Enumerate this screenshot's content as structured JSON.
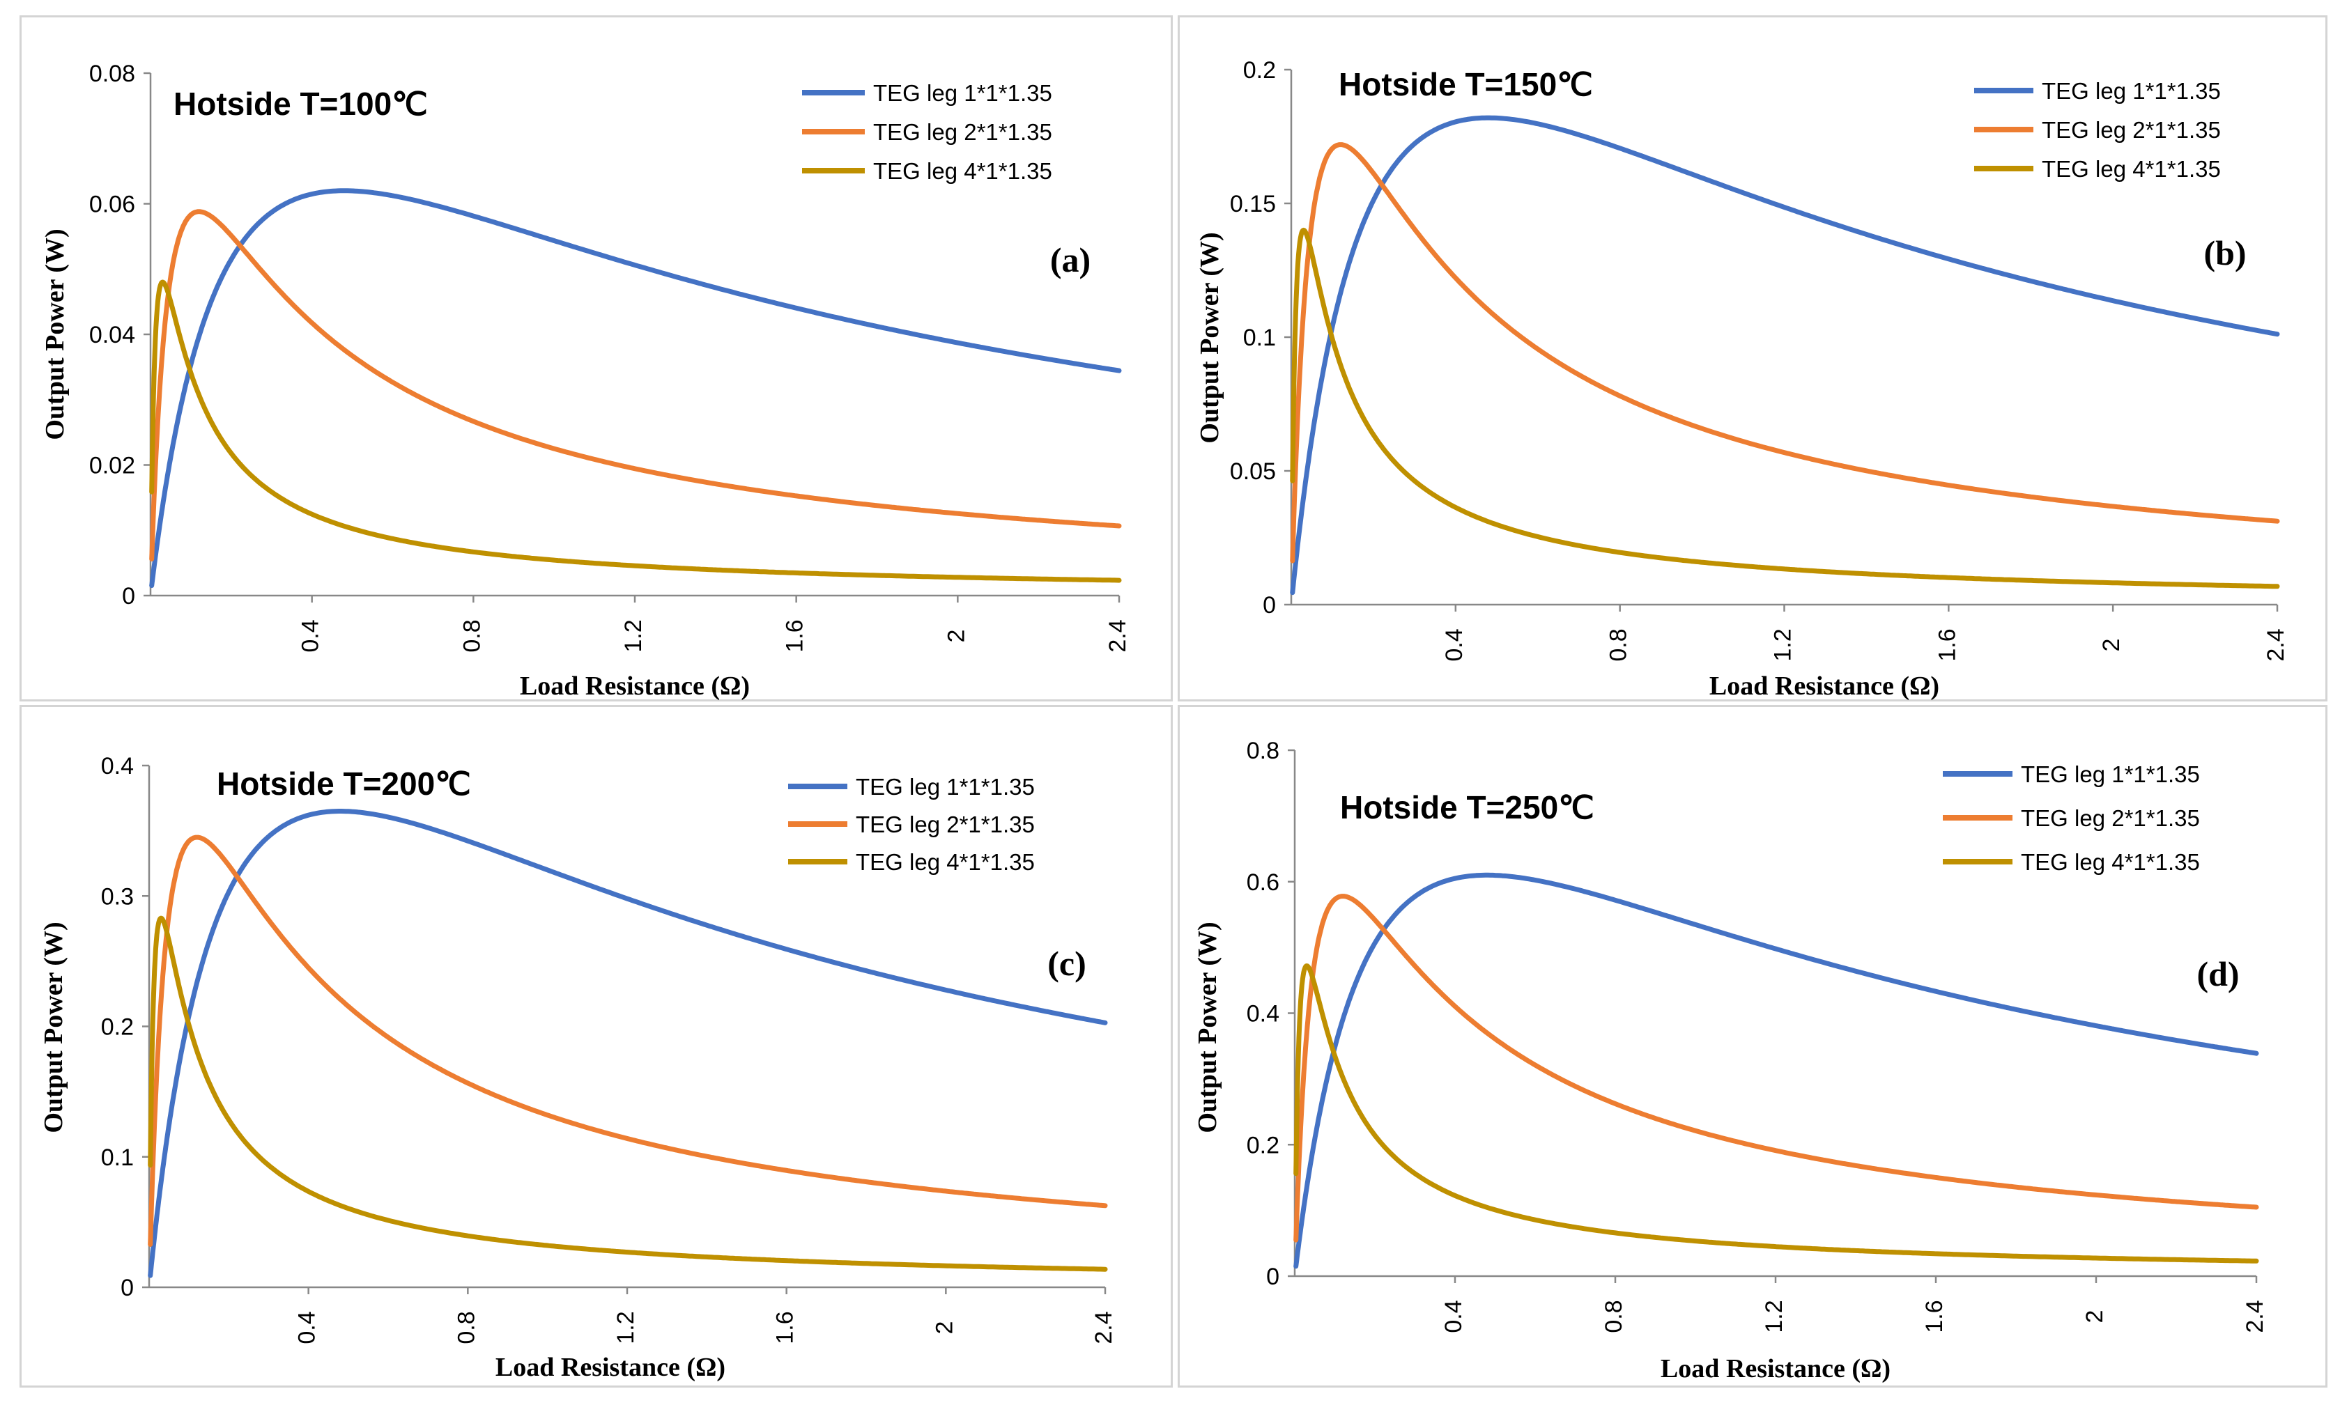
{
  "chart_data": [
    {
      "type": "line",
      "title": "Hotside T=100℃",
      "panel_label": "(a)",
      "xlabel": "Load Resistance (Ω)",
      "ylabel": "Output Power (W)",
      "xlim": [
        0,
        2.4
      ],
      "ylim": [
        0,
        0.08
      ],
      "xticks": [
        0.4,
        0.8,
        1.2,
        1.6,
        2,
        2.4
      ],
      "xtick_labels": [
        "0.4",
        "0.8",
        "1.2",
        "1.6",
        "2",
        "2.4"
      ],
      "yticks": [
        0,
        0.02,
        0.04,
        0.06,
        0.08
      ],
      "ytick_labels": [
        "0",
        "0.02",
        "0.04",
        "0.06",
        "0.08"
      ],
      "grid": false,
      "legend_position": "top-right",
      "series": [
        {
          "name": "TEG leg 1*1*1.35",
          "color": "#4472C4",
          "peak_power": 0.062,
          "optimal_resistance": 0.48
        },
        {
          "name": "TEG leg 2*1*1.35",
          "color": "#ED7D31",
          "peak_power": 0.0588,
          "optimal_resistance": 0.12
        },
        {
          "name": "TEG leg 4*1*1.35",
          "color": "#BF9000",
          "peak_power": 0.048,
          "optimal_resistance": 0.03
        }
      ]
    },
    {
      "type": "line",
      "title": "Hotside T=150℃",
      "panel_label": "(b)",
      "xlabel": "Load Resistance (Ω)",
      "ylabel": "Output Power (W)",
      "xlim": [
        0,
        2.4
      ],
      "ylim": [
        0,
        0.2
      ],
      "xticks": [
        0.4,
        0.8,
        1.2,
        1.6,
        2,
        2.4
      ],
      "xtick_labels": [
        "0.4",
        "0.8",
        "1.2",
        "1.6",
        "2",
        "2.4"
      ],
      "yticks": [
        0,
        0.05,
        0.1,
        0.15,
        0.2
      ],
      "ytick_labels": [
        "0",
        "0.05",
        "0.1",
        "0.15",
        "0.2"
      ],
      "grid": false,
      "legend_position": "top-right",
      "series": [
        {
          "name": "TEG leg 1*1*1.35",
          "color": "#4472C4",
          "peak_power": 0.182,
          "optimal_resistance": 0.48
        },
        {
          "name": "TEG leg 2*1*1.35",
          "color": "#ED7D31",
          "peak_power": 0.172,
          "optimal_resistance": 0.12
        },
        {
          "name": "TEG leg 4*1*1.35",
          "color": "#BF9000",
          "peak_power": 0.14,
          "optimal_resistance": 0.03
        }
      ]
    },
    {
      "type": "line",
      "title": "Hotside T=200℃",
      "panel_label": "(c)",
      "xlabel": "Load Resistance (Ω)",
      "ylabel": "Output Power (W)",
      "xlim": [
        0,
        2.4
      ],
      "ylim": [
        0,
        0.4
      ],
      "xticks": [
        0.4,
        0.8,
        1.2,
        1.6,
        2,
        2.4
      ],
      "xtick_labels": [
        "0.4",
        "0.8",
        "1.2",
        "1.6",
        "2",
        "2.4"
      ],
      "yticks": [
        0,
        0.1,
        0.2,
        0.3,
        0.4
      ],
      "ytick_labels": [
        "0",
        "0.1",
        "0.2",
        "0.3",
        "0.4"
      ],
      "grid": false,
      "legend_position": "top-right",
      "series": [
        {
          "name": "TEG leg 1*1*1.35",
          "color": "#4472C4",
          "peak_power": 0.365,
          "optimal_resistance": 0.48
        },
        {
          "name": "TEG leg 2*1*1.35",
          "color": "#ED7D31",
          "peak_power": 0.345,
          "optimal_resistance": 0.12
        },
        {
          "name": "TEG leg 4*1*1.35",
          "color": "#BF9000",
          "peak_power": 0.283,
          "optimal_resistance": 0.03
        }
      ]
    },
    {
      "type": "line",
      "title": "Hotside T=250℃",
      "panel_label": "(d)",
      "xlabel": "Load Resistance (Ω)",
      "ylabel": "Output Power (W)",
      "xlim": [
        0,
        2.4
      ],
      "ylim": [
        0,
        0.8
      ],
      "xticks": [
        0.4,
        0.8,
        1.2,
        1.6,
        2,
        2.4
      ],
      "xtick_labels": [
        "0.4",
        "0.8",
        "1.2",
        "1.6",
        "2",
        "2.4"
      ],
      "yticks": [
        0,
        0.2,
        0.4,
        0.6,
        0.8
      ],
      "ytick_labels": [
        "0",
        "0.2",
        "0.4",
        "0.6",
        "0.8"
      ],
      "grid": false,
      "legend_position": "top-right",
      "series": [
        {
          "name": "TEG leg 1*1*1.35",
          "color": "#4472C4",
          "peak_power": 0.61,
          "optimal_resistance": 0.48
        },
        {
          "name": "TEG leg 2*1*1.35",
          "color": "#ED7D31",
          "peak_power": 0.578,
          "optimal_resistance": 0.12
        },
        {
          "name": "TEG leg 4*1*1.35",
          "color": "#BF9000",
          "peak_power": 0.472,
          "optimal_resistance": 0.03
        }
      ]
    }
  ]
}
